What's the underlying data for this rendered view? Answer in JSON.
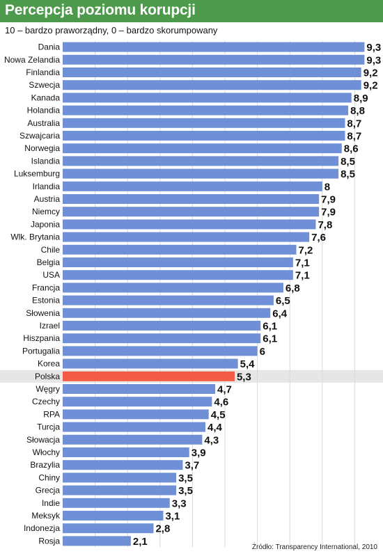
{
  "header": {
    "title": "Percepcja poziomu korupcji",
    "subtitle": "10 – bardzo praworządny, 0 – bardzo skorumpowany",
    "source": "Źródło: Transparency International, 2010"
  },
  "colors": {
    "header_bg": "#4e9a4c",
    "bar": "#6f8fd6",
    "highlight_bar": "#f45b46",
    "highlight_row": "#e6e6e6",
    "grid": "#d9d9d9"
  },
  "chart_data": {
    "type": "bar",
    "orientation": "horizontal",
    "title": "Percepcja poziomu korupcji",
    "subtitle": "10 – bardzo praworządny, 0 – bardzo skorumpowany",
    "xlim": [
      0,
      10
    ],
    "grid": true,
    "highlight": "Polska",
    "categories": [
      "Dania",
      "Nowa Zelandia",
      "Finlandia",
      "Szwecja",
      "Kanada",
      "Holandia",
      "Australia",
      "Szwajcaria",
      "Norwegia",
      "Islandia",
      "Luksemburg",
      "Irlandia",
      "Austria",
      "Niemcy",
      "Japonia",
      "Wlk. Brytania",
      "Chile",
      "Belgia",
      "USA",
      "Francja",
      "Estonia",
      "Słowenia",
      "Izrael",
      "Hiszpania",
      "Portugalia",
      "Korea",
      "Polska",
      "Węgry",
      "Czechy",
      "RPA",
      "Turcja",
      "Słowacja",
      "Włochy",
      "Brazylia",
      "Chiny",
      "Grecja",
      "Indie",
      "Meksyk",
      "Indonezja",
      "Rosja"
    ],
    "values": [
      9.3,
      9.3,
      9.2,
      9.2,
      8.9,
      8.8,
      8.7,
      8.7,
      8.6,
      8.5,
      8.5,
      8,
      7.9,
      7.9,
      7.8,
      7.6,
      7.2,
      7.1,
      7.1,
      6.8,
      6.5,
      6.4,
      6.1,
      6.1,
      6,
      5.4,
      5.3,
      4.7,
      4.6,
      4.5,
      4.4,
      4.3,
      3.9,
      3.7,
      3.5,
      3.5,
      3.3,
      3.1,
      2.8,
      2.1
    ],
    "value_labels": [
      "9,3",
      "9,3",
      "9,2",
      "9,2",
      "8,9",
      "8,8",
      "8,7",
      "8,7",
      "8,6",
      "8,5",
      "8,5",
      "8",
      "7,9",
      "7,9",
      "7,8",
      "7,6",
      "7,2",
      "7,1",
      "7,1",
      "6,8",
      "6,5",
      "6,4",
      "6,1",
      "6,1",
      "6",
      "5,4",
      "5,3",
      "4,7",
      "4,6",
      "4,5",
      "4,4",
      "4,3",
      "3,9",
      "3,7",
      "3,5",
      "3,5",
      "3,3",
      "3,1",
      "2,8",
      "2,1"
    ]
  }
}
